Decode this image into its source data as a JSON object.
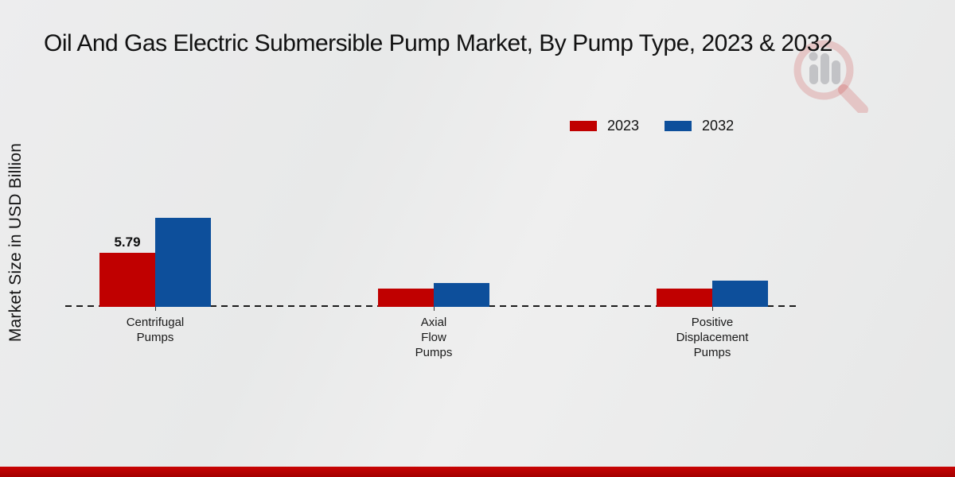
{
  "chart_data": {
    "type": "bar",
    "title": "Oil And Gas Electric Submersible Pump Market, By Pump Type, 2023 & 2032",
    "ylabel": "Market Size in USD Billion",
    "categories": [
      "Centrifugal Pumps",
      "Axial Flow Pumps",
      "Positive Displacement Pumps"
    ],
    "category_lines": [
      [
        "Centrifugal",
        "Pumps"
      ],
      [
        "Axial",
        "Flow",
        "Pumps"
      ],
      [
        "Positive",
        "Displacement",
        "Pumps"
      ]
    ],
    "series": [
      {
        "name": "2023",
        "color": "#c00000",
        "values": [
          5.79,
          2.0,
          1.95
        ],
        "data_labels": [
          "5.79",
          "",
          ""
        ]
      },
      {
        "name": "2032",
        "color": "#0d4f9b",
        "values": [
          9.56,
          2.6,
          2.8
        ],
        "data_labels": [
          "",
          "",
          ""
        ]
      }
    ],
    "ylim": [
      0,
      10
    ],
    "grid": false,
    "axis_style": "dashed-baseline-only",
    "legend_position": "top-right"
  },
  "legend": {
    "items": [
      {
        "label": "2023",
        "color": "#c00000"
      },
      {
        "label": "2032",
        "color": "#0d4f9b"
      }
    ]
  },
  "watermark": {
    "icon": "magnifier-bar-chart-logo",
    "accent": "#c00000",
    "bars": "#73737a"
  },
  "footer": {
    "strip_color": "#b00000"
  }
}
